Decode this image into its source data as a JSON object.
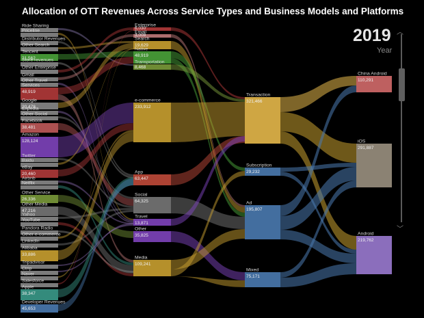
{
  "title": "Allocation of OTT Revenues Across Service Types and Business Models and Platforms",
  "year": {
    "value": "2019",
    "label": "Year"
  },
  "colors": {
    "background": "#000000",
    "axis": "#5a5a5a"
  },
  "chart_data": {
    "type": "sankey",
    "columns": [
      {
        "name": "Service / Company",
        "nodes": [
          {
            "id": "s0",
            "label": "Ride Sharing",
            "value": "",
            "color": "#888888"
          },
          {
            "id": "s1",
            "label": "Priceline",
            "value": "",
            "color": "#888888"
          },
          {
            "id": "s2",
            "label": "Distributor Revenues",
            "value": "",
            "color": "#888888"
          },
          {
            "id": "s3",
            "label": "Other Search",
            "value": "",
            "color": "#888888"
          },
          {
            "id": "s4",
            "label": "Tencent",
            "value": "21,562",
            "color": "#4aa33a"
          },
          {
            "id": "s5",
            "label": "Store revenues",
            "value": "",
            "color": "#888888"
          },
          {
            "id": "s6",
            "label": "Other Enterprise",
            "value": "",
            "color": "#888888"
          },
          {
            "id": "s7",
            "label": "Gmail",
            "value": "",
            "color": "#888888"
          },
          {
            "id": "s8",
            "label": "Other Travel",
            "value": "",
            "color": "#888888"
          },
          {
            "id": "s9",
            "label": "Services",
            "value": "48,919",
            "color": "#b33a3a"
          },
          {
            "id": "s10",
            "label": "Google",
            "value": "20,478",
            "color": "#888888"
          },
          {
            "id": "s11",
            "label": "Expedia",
            "value": "",
            "color": "#888888"
          },
          {
            "id": "s12",
            "label": "Other Social",
            "value": "",
            "color": "#888888"
          },
          {
            "id": "s13",
            "label": "Facebook",
            "value": "38,481",
            "color": "#c05a5a"
          },
          {
            "id": "s14",
            "label": "Amazon",
            "value": "128,124",
            "color": "#7e44bd"
          },
          {
            "id": "s15",
            "label": "Twitter",
            "value": "",
            "color": "#888888"
          },
          {
            "id": "s16",
            "label": "Baidu",
            "value": "",
            "color": "#888888"
          },
          {
            "id": "s17",
            "label": "eBay",
            "value": "20,460",
            "color": "#b03a3a"
          },
          {
            "id": "s18",
            "label": "Airbnb",
            "value": "",
            "color": "#888888"
          },
          {
            "id": "s19",
            "label": "Netflix",
            "value": "",
            "color": "#888888"
          },
          {
            "id": "s20",
            "label": "Other Service",
            "value": "26,336",
            "color": "#7a9a3a"
          },
          {
            "id": "s21",
            "label": "Other Media",
            "value": "47,216",
            "color": "#777777"
          },
          {
            "id": "s22",
            "label": "Yahoo",
            "value": "",
            "color": "#888888"
          },
          {
            "id": "s23",
            "label": "YouTube",
            "value": "",
            "color": "#888888"
          },
          {
            "id": "s24",
            "label": "Pandora Radio",
            "value": "",
            "color": "#888888"
          },
          {
            "id": "s25",
            "label": "Other e-commerce",
            "value": "",
            "color": "#888888"
          },
          {
            "id": "s26",
            "label": "LinkedIn",
            "value": "",
            "color": "#888888"
          },
          {
            "id": "s27",
            "label": "Alibaba",
            "value": "33,886",
            "color": "#c9a030"
          },
          {
            "id": "s28",
            "label": "Tripadvisor",
            "value": "",
            "color": "#888888"
          },
          {
            "id": "s29",
            "label": "Ctrip",
            "value": "",
            "color": "#888888"
          },
          {
            "id": "s30",
            "label": "Naver",
            "value": "",
            "color": "#888888"
          },
          {
            "id": "s31",
            "label": "Salesforce",
            "value": "",
            "color": "#888888"
          },
          {
            "id": "s32",
            "label": "Apple",
            "value": "38,347",
            "color": "#3a9a8a"
          },
          {
            "id": "s33",
            "label": "Developer Revenues",
            "value": "45,653",
            "color": "#4a7ab0"
          }
        ]
      },
      {
        "name": "Service Type",
        "nodes": [
          {
            "id": "t0",
            "label": "Enterprise",
            "value": "6,030",
            "color": "#b33a3a"
          },
          {
            "id": "t1",
            "label": "Email",
            "value": "3,008",
            "color": "#c07a7a"
          },
          {
            "id": "t2",
            "label": "Search",
            "value": "19,629",
            "color": "#c9a030"
          },
          {
            "id": "t3",
            "label": "Native",
            "value": "48,919",
            "color": "#4aa33a"
          },
          {
            "id": "t4",
            "label": "Transportation",
            "value": "8,468",
            "color": "#7a9a3a"
          },
          {
            "id": "t5",
            "label": "e-commerce",
            "value": "233,912",
            "color": "#c9a030"
          },
          {
            "id": "t6",
            "label": "App",
            "value": "63,447",
            "color": "#c04a3a"
          },
          {
            "id": "t7",
            "label": "Social",
            "value": "64,325",
            "color": "#777777"
          },
          {
            "id": "t8",
            "label": "Travel",
            "value": "13,871",
            "color": "#7e44bd"
          },
          {
            "id": "t9",
            "label": "Other",
            "value": "35,825",
            "color": "#7e44bd"
          },
          {
            "id": "t10",
            "label": "Media",
            "value": "109,241",
            "color": "#c9a030"
          }
        ]
      },
      {
        "name": "Business Model",
        "nodes": [
          {
            "id": "b0",
            "label": "Transaction",
            "value": "321,466",
            "color": "#e6b84a"
          },
          {
            "id": "b1",
            "label": "Subscription",
            "value": "29,232",
            "color": "#4a7ab0"
          },
          {
            "id": "b2",
            "label": "Ad",
            "value": "195,807",
            "color": "#4a7ab0"
          },
          {
            "id": "b3",
            "label": "Mixed",
            "value": "75,171",
            "color": "#4a7ab0"
          }
        ]
      },
      {
        "name": "Platform",
        "nodes": [
          {
            "id": "p0",
            "label": "China Android",
            "value": "110,291",
            "color": "#d36a6a"
          },
          {
            "id": "p1",
            "label": "iOS",
            "value": "291,887",
            "color": "#9a9080"
          },
          {
            "id": "p2",
            "label": "Android",
            "value": "219,762",
            "color": "#9a7ad0"
          }
        ]
      }
    ]
  }
}
